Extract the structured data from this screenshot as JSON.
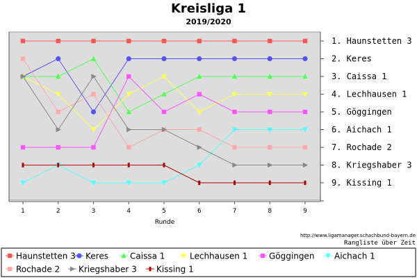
{
  "chart_data": {
    "type": "line",
    "title": "Kreisliga 1",
    "subtitle": "2019/2020",
    "xlabel": "Runde",
    "ylabel": "",
    "x": [
      1,
      2,
      3,
      4,
      5,
      6,
      7,
      8,
      9
    ],
    "ylim": [
      1,
      9
    ],
    "y_inverted": true,
    "grid": false,
    "legend": "bottom",
    "rank_labels": [
      "1. Haunstetten 3",
      "2. Keres",
      "3. Caissa 1",
      "4. Lechhausen 1",
      "5. Göggingen",
      "6. Aichach 1",
      "7. Rochade 2",
      "8. Kriegshaber 3",
      "9. Kissing 1"
    ],
    "source_text": "http://www.ligamanager.schachbund-bayern.de",
    "caption": "Rangliste über Zeit",
    "series": [
      {
        "name": "Haunstetten 3",
        "color": "#ff5555",
        "marker": "square",
        "values": [
          1,
          1,
          1,
          1,
          1,
          1,
          1,
          1,
          1
        ]
      },
      {
        "name": "Keres",
        "color": "#5555ff",
        "marker": "circle",
        "values": [
          3,
          2,
          5,
          2,
          2,
          2,
          2,
          2,
          2
        ]
      },
      {
        "name": "Caissa 1",
        "color": "#55ff55",
        "marker": "triangle-up",
        "values": [
          3,
          3,
          2,
          5,
          4,
          3,
          3,
          3,
          3
        ]
      },
      {
        "name": "Lechhausen 1",
        "color": "#ffff55",
        "marker": "triangle-down",
        "values": [
          3,
          4,
          6,
          4,
          3,
          5,
          4,
          4,
          4
        ]
      },
      {
        "name": "Göggingen",
        "color": "#ff55ff",
        "marker": "square",
        "values": [
          7,
          7,
          7,
          3,
          5,
          4,
          5,
          5,
          5
        ]
      },
      {
        "name": "Aichach 1",
        "color": "#55ffff",
        "marker": "triangle-down",
        "values": [
          9,
          8,
          9,
          9,
          9,
          8,
          6,
          6,
          6
        ]
      },
      {
        "name": "Rochade 2",
        "color": "#ffaaaa",
        "marker": "square",
        "values": [
          2,
          5,
          4,
          7,
          6,
          6,
          7,
          7,
          7
        ]
      },
      {
        "name": "Kriegshaber 3",
        "color": "#888888",
        "marker": "triangle-right",
        "values": [
          3,
          6,
          3,
          6,
          6,
          7,
          8,
          8,
          8
        ]
      },
      {
        "name": "Kissing 1",
        "color": "#aa0000",
        "marker": "tick",
        "values": [
          8,
          8,
          8,
          8,
          8,
          9,
          9,
          9,
          9
        ]
      }
    ]
  }
}
